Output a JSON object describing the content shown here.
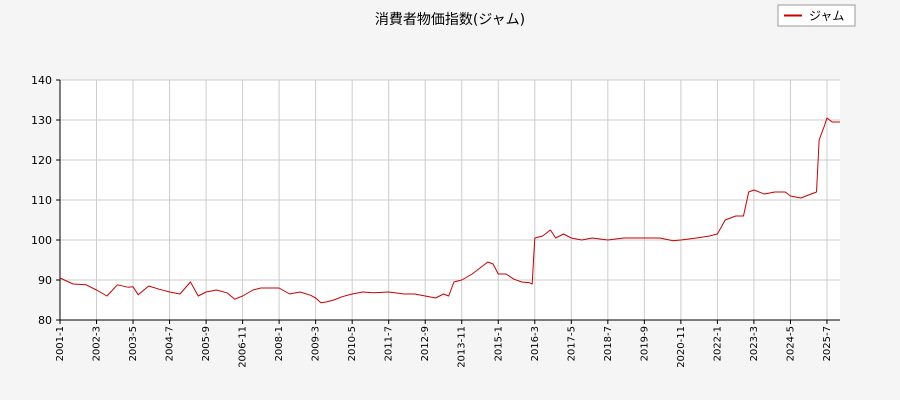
{
  "chart_data": {
    "type": "line",
    "title": "消費者物価指数(ジャム)",
    "xlabel": "",
    "ylabel": "",
    "ylim": [
      80,
      140
    ],
    "yticks": [
      80,
      90,
      100,
      110,
      120,
      130,
      140
    ],
    "xticks": [
      "2001-1",
      "2002-3",
      "2003-5",
      "2004-7",
      "2005-9",
      "2006-11",
      "2008-1",
      "2009-3",
      "2010-5",
      "2011-7",
      "2012-9",
      "2013-11",
      "2015-1",
      "2016-3",
      "2017-5",
      "2018-7",
      "2019-9",
      "2020-11",
      "2022-1",
      "2023-3",
      "2024-5",
      "2025-7"
    ],
    "grid": true,
    "legend_position": "top-right",
    "colors": {
      "series": "#cc0000",
      "grid": "#cccccc",
      "axis": "#000000",
      "plot_bg": "#ffffff",
      "page_bg": "#f5f5f5"
    },
    "series": [
      {
        "name": "ジャム",
        "points": [
          [
            "2001-01",
            90.5
          ],
          [
            "2001-06",
            89.0
          ],
          [
            "2001-11",
            88.8
          ],
          [
            "2002-03",
            87.5
          ],
          [
            "2002-07",
            86.0
          ],
          [
            "2002-11",
            88.8
          ],
          [
            "2003-03",
            88.2
          ],
          [
            "2003-05",
            88.3
          ],
          [
            "2003-07",
            86.3
          ],
          [
            "2003-11",
            88.5
          ],
          [
            "2004-03",
            87.7
          ],
          [
            "2004-07",
            87.0
          ],
          [
            "2004-11",
            86.5
          ],
          [
            "2005-03",
            89.5
          ],
          [
            "2005-06",
            86.0
          ],
          [
            "2005-09",
            87.0
          ],
          [
            "2006-01",
            87.5
          ],
          [
            "2006-05",
            86.8
          ],
          [
            "2006-08",
            85.2
          ],
          [
            "2006-11",
            86.0
          ],
          [
            "2007-03",
            87.5
          ],
          [
            "2007-06",
            88.0
          ],
          [
            "2008-01",
            88.0
          ],
          [
            "2008-05",
            86.5
          ],
          [
            "2008-09",
            87.0
          ],
          [
            "2009-01",
            86.2
          ],
          [
            "2009-03",
            85.5
          ],
          [
            "2009-05",
            84.3
          ],
          [
            "2009-07",
            84.5
          ],
          [
            "2009-10",
            85.0
          ],
          [
            "2010-01",
            85.8
          ],
          [
            "2010-05",
            86.5
          ],
          [
            "2010-09",
            87.0
          ],
          [
            "2011-01",
            86.8
          ],
          [
            "2011-07",
            87.0
          ],
          [
            "2012-01",
            86.5
          ],
          [
            "2012-05",
            86.5
          ],
          [
            "2012-09",
            86.0
          ],
          [
            "2013-01",
            85.5
          ],
          [
            "2013-04",
            86.5
          ],
          [
            "2013-06",
            86.0
          ],
          [
            "2013-08",
            89.5
          ],
          [
            "2013-11",
            90.0
          ],
          [
            "2014-03",
            91.5
          ],
          [
            "2014-06",
            93.0
          ],
          [
            "2014-09",
            94.5
          ],
          [
            "2014-11",
            94.0
          ],
          [
            "2015-01",
            91.5
          ],
          [
            "2015-04",
            91.5
          ],
          [
            "2015-07",
            90.2
          ],
          [
            "2015-10",
            89.5
          ],
          [
            "2016-01",
            89.3
          ],
          [
            "2016-02",
            89.0
          ],
          [
            "2016-03",
            100.5
          ],
          [
            "2016-06",
            101.0
          ],
          [
            "2016-09",
            102.5
          ],
          [
            "2016-11",
            100.5
          ],
          [
            "2017-02",
            101.5
          ],
          [
            "2017-05",
            100.5
          ],
          [
            "2017-09",
            100.0
          ],
          [
            "2018-01",
            100.5
          ],
          [
            "2018-07",
            100.0
          ],
          [
            "2019-01",
            100.5
          ],
          [
            "2019-09",
            100.5
          ],
          [
            "2020-03",
            100.5
          ],
          [
            "2020-08",
            99.8
          ],
          [
            "2020-11",
            100.0
          ],
          [
            "2021-05",
            100.5
          ],
          [
            "2021-10",
            101.0
          ],
          [
            "2022-01",
            101.5
          ],
          [
            "2022-04",
            105.0
          ],
          [
            "2022-08",
            106.0
          ],
          [
            "2022-11",
            106.0
          ],
          [
            "2023-01",
            112.0
          ],
          [
            "2023-03",
            112.5
          ],
          [
            "2023-07",
            111.5
          ],
          [
            "2023-11",
            112.0
          ],
          [
            "2024-03",
            112.0
          ],
          [
            "2024-05",
            111.0
          ],
          [
            "2024-09",
            110.5
          ],
          [
            "2025-01",
            111.5
          ],
          [
            "2025-03",
            112.0
          ],
          [
            "2025-04",
            125.0
          ],
          [
            "2025-06",
            128.5
          ],
          [
            "2025-07",
            130.5
          ],
          [
            "2025-09",
            129.5
          ],
          [
            "2025-12",
            129.5
          ]
        ]
      }
    ]
  }
}
